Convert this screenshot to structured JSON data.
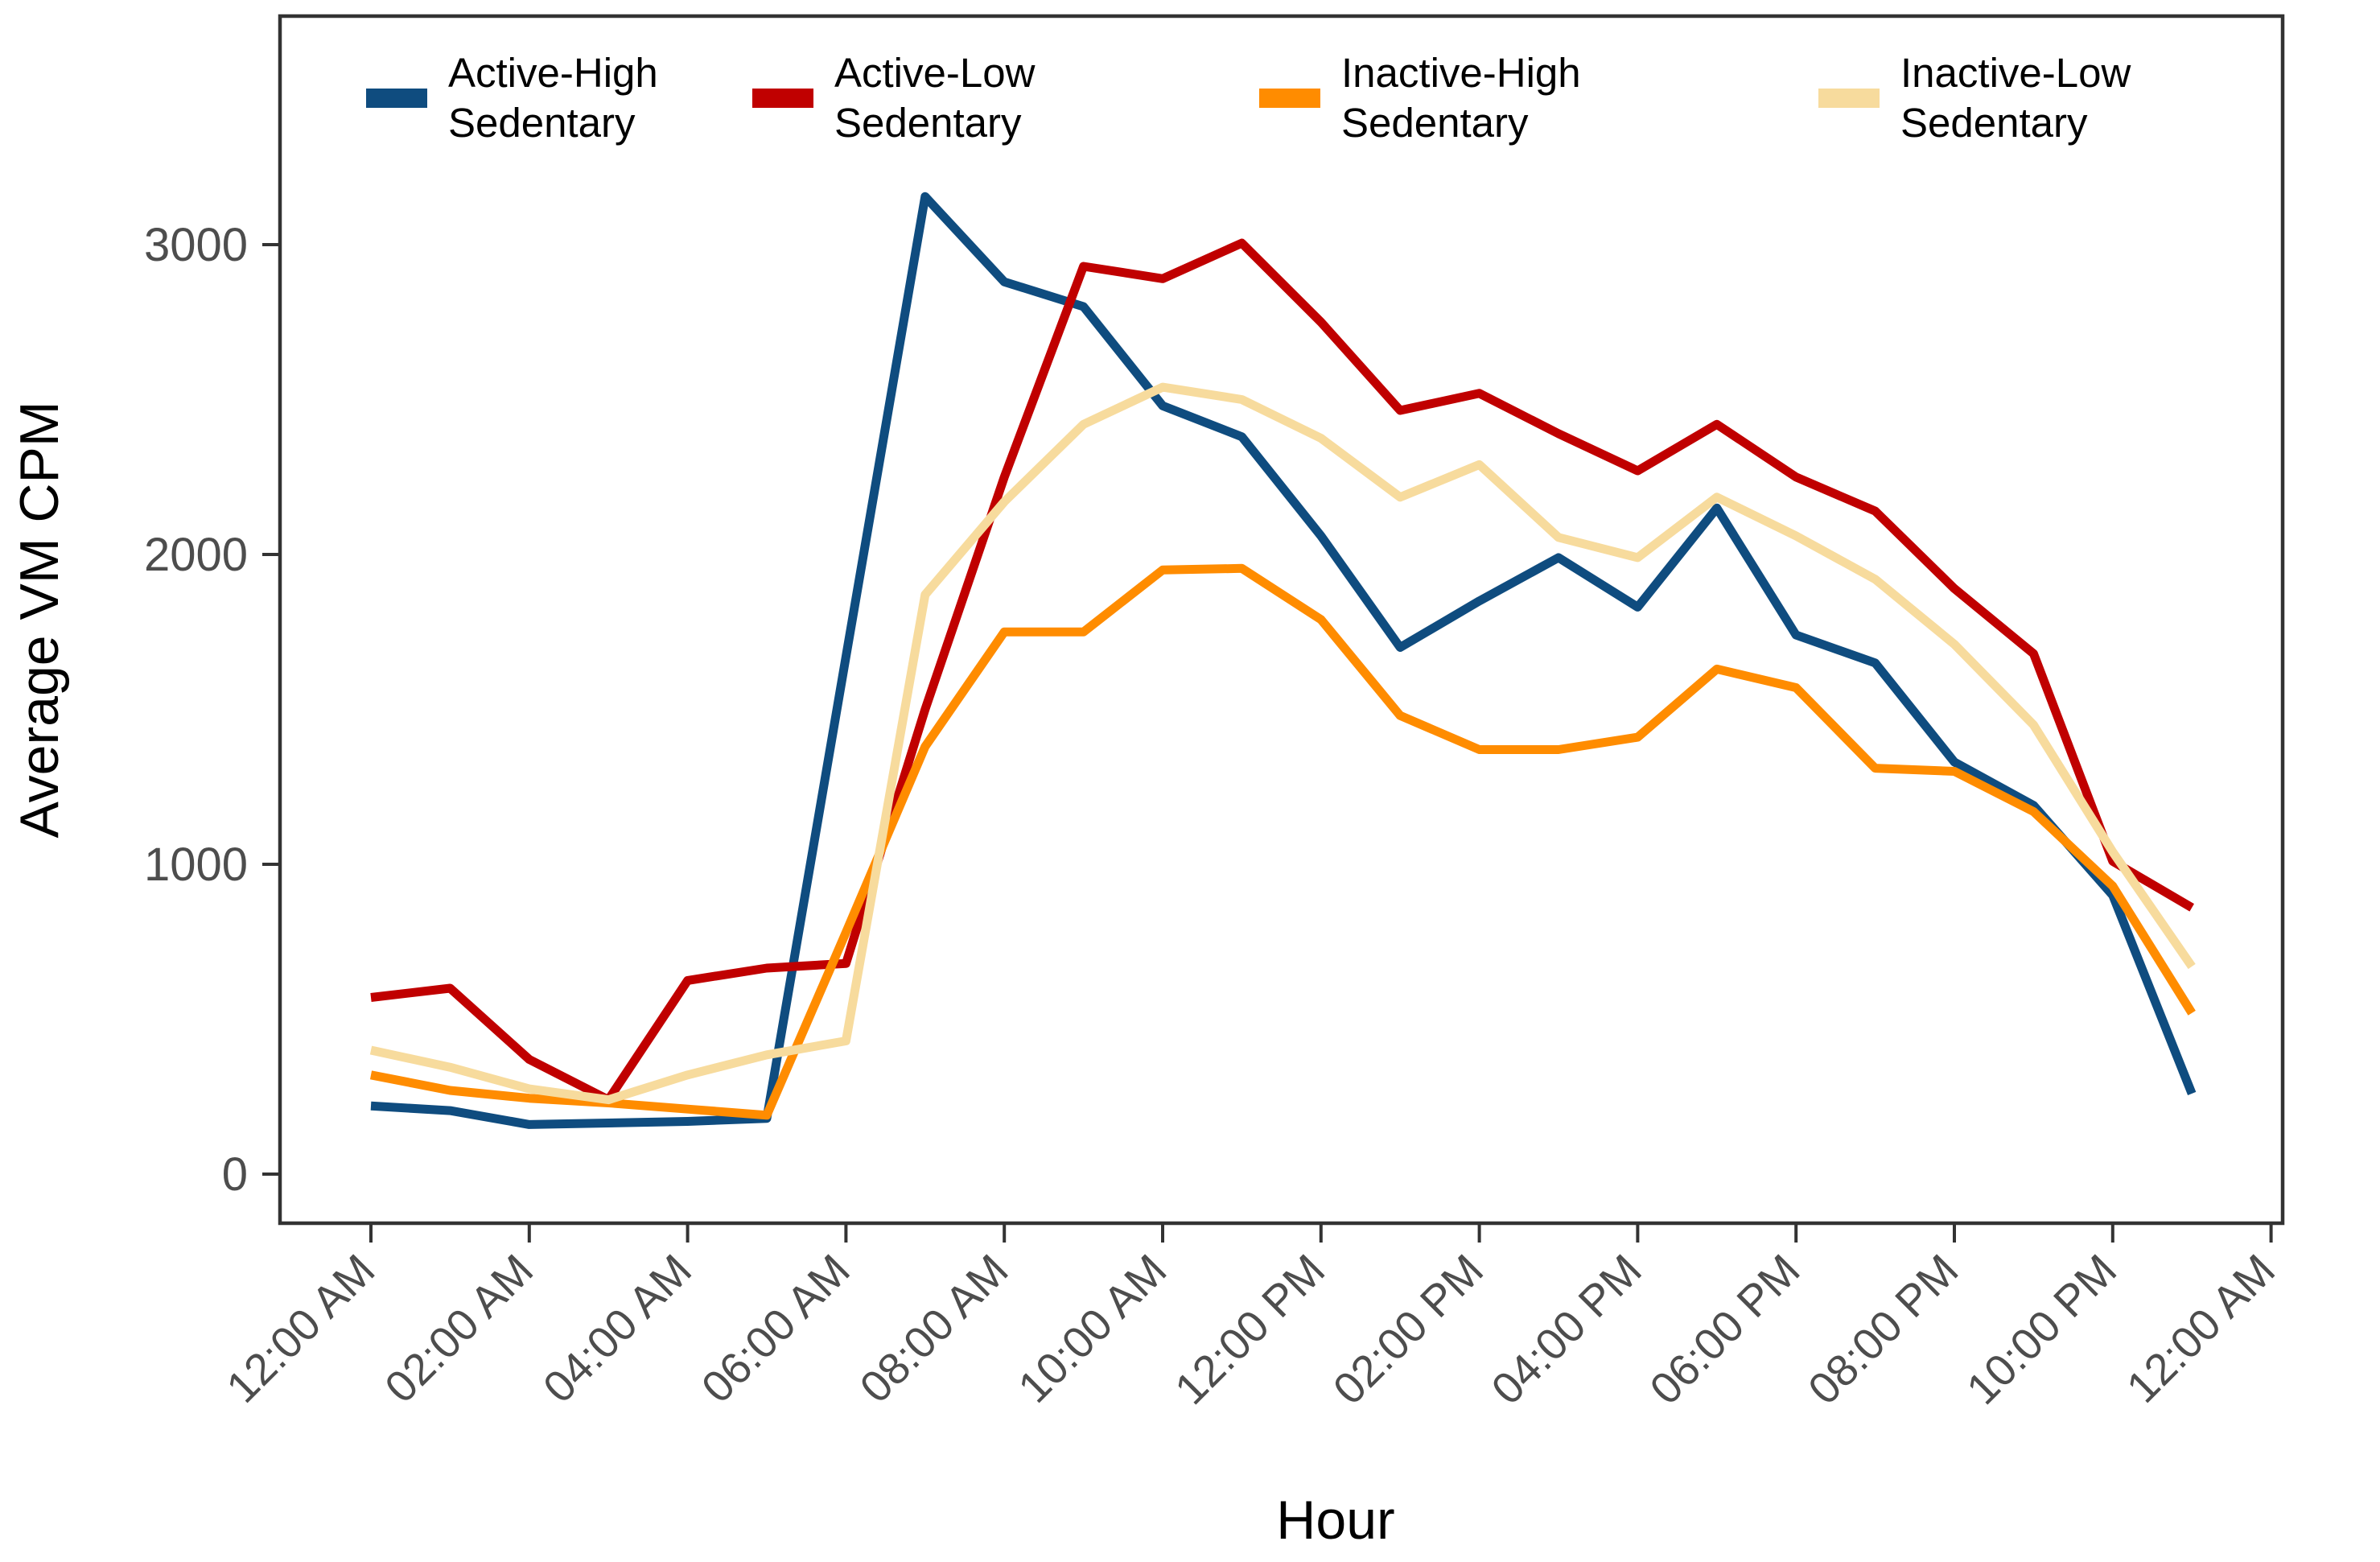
{
  "chart_data": {
    "type": "line",
    "title": "",
    "xlabel": "Hour",
    "ylabel": "Average VM CPM",
    "grid": "off",
    "legend_position": "top",
    "x_axis": {
      "tick_hours": [
        0,
        2,
        4,
        6,
        8,
        10,
        12,
        14,
        16,
        18,
        20,
        22,
        24
      ],
      "tick_labels": [
        "12:00 AM",
        "02:00 AM",
        "04:00 AM",
        "06:00 AM",
        "08:00 AM",
        "10:00 AM",
        "12:00 PM",
        "02:00 PM",
        "04:00 PM",
        "06:00 PM",
        "08:00 PM",
        "10:00 PM",
        "12:00 AM"
      ]
    },
    "y_axis": {
      "ticks": [
        0,
        1000,
        2000,
        3000
      ],
      "range": [
        0,
        3700
      ]
    },
    "hours": [
      0,
      1,
      2,
      3,
      4,
      5,
      6,
      7,
      8,
      9,
      10,
      11,
      12,
      13,
      14,
      15,
      16,
      17,
      18,
      19,
      20,
      21,
      22,
      23
    ],
    "series": [
      {
        "name": "Active-High Sedentary",
        "label_line1": "Active-High",
        "label_line2": "Sedentary",
        "color": "#0f4c7f",
        "values": [
          220,
          205,
          160,
          165,
          170,
          180,
          1670,
          3155,
          2880,
          2800,
          2480,
          2380,
          2060,
          1700,
          1850,
          1990,
          1830,
          2150,
          1740,
          1650,
          1330,
          1190,
          900,
          260
        ]
      },
      {
        "name": "Active-Low Sedentary",
        "label_line1": "Active-Low",
        "label_line2": "Sedentary",
        "color": "#c00000",
        "values": [
          570,
          600,
          370,
          240,
          625,
          665,
          680,
          1500,
          2250,
          2930,
          2890,
          3005,
          2750,
          2465,
          2520,
          2390,
          2270,
          2420,
          2250,
          2140,
          1890,
          1680,
          1010,
          860
        ]
      },
      {
        "name": "Inactive-High Sedentary",
        "label_line1": "Inactive-High",
        "label_line2": "Sedentary",
        "color": "#ff8c00",
        "values": [
          320,
          270,
          245,
          230,
          210,
          190,
          780,
          1380,
          1750,
          1750,
          1950,
          1955,
          1790,
          1480,
          1370,
          1370,
          1410,
          1630,
          1570,
          1310,
          1300,
          1170,
          930,
          520
        ]
      },
      {
        "name": "Inactive-Low Sedentary",
        "label_line1": "Inactive-Low",
        "label_line2": "Sedentary",
        "color": "#f7db9d",
        "values": [
          400,
          345,
          275,
          240,
          320,
          385,
          430,
          1870,
          2170,
          2420,
          2540,
          2500,
          2375,
          2185,
          2290,
          2055,
          1990,
          2185,
          2060,
          1920,
          1710,
          1450,
          1040,
          670
        ]
      }
    ]
  }
}
